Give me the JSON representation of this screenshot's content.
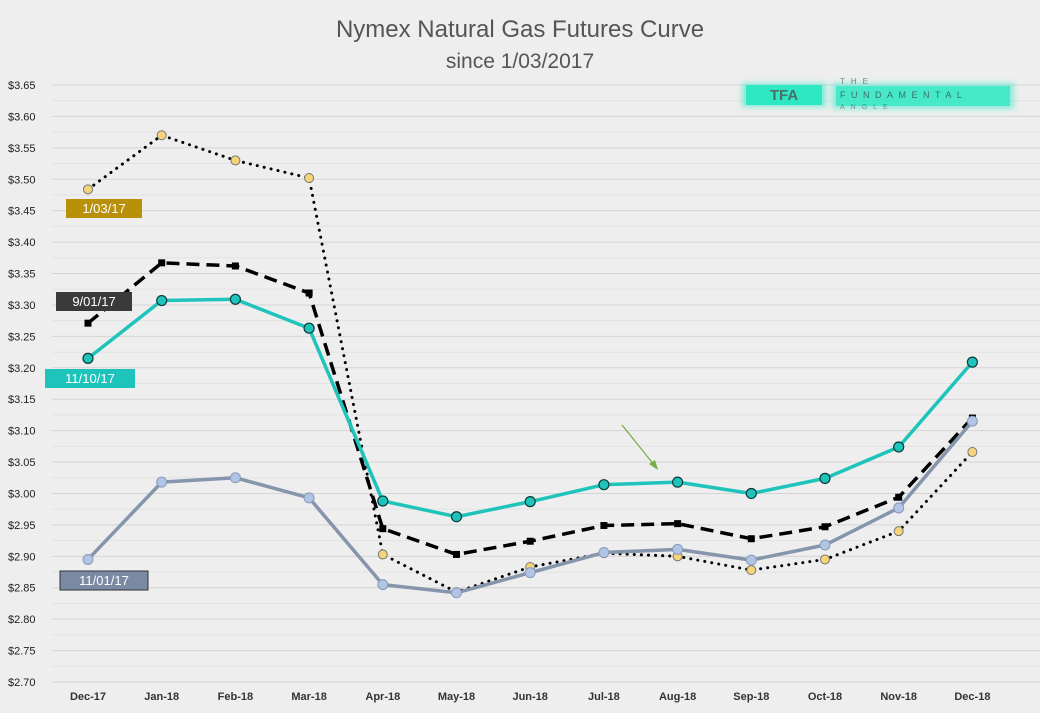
{
  "chart_data": {
    "type": "line",
    "title": "Nymex Natural Gas Futures Curve",
    "subtitle": "since 1/03/2017",
    "categories": [
      "Dec-17",
      "Jan-18",
      "Feb-18",
      "Mar-18",
      "Apr-18",
      "May-18",
      "Jun-18",
      "Jul-18",
      "Aug-18",
      "Sep-18",
      "Oct-18",
      "Nov-18",
      "Dec-18"
    ],
    "ylim": [
      2.7,
      3.65
    ],
    "ytick_step": 0.05,
    "ytick_labels": [
      "$2.70",
      "$2.75",
      "$2.80",
      "$2.85",
      "$2.90",
      "$2.95",
      "$3.00",
      "$3.05",
      "$3.10",
      "$3.15",
      "$3.20",
      "$3.25",
      "$3.30",
      "$3.35",
      "$3.40",
      "$3.45",
      "$3.50",
      "$3.55",
      "$3.60",
      "$3.65"
    ],
    "grid": true,
    "legend": "inline tags",
    "series": [
      {
        "name": "1/03/17",
        "style": "dotted",
        "color": "#000000",
        "marker_color": "#f5d47a",
        "tag_color": "#b8900a",
        "tag_text_color": "#ffffff",
        "values": [
          3.484,
          3.57,
          3.53,
          3.502,
          2.903,
          2.843,
          2.883,
          2.905,
          2.9,
          2.878,
          2.895,
          2.94,
          3.066
        ]
      },
      {
        "name": "9/01/17",
        "style": "dashed",
        "color": "#000000",
        "marker_color": "#000000",
        "tag_color": "#3a3a3a",
        "tag_text_color": "#ffffff",
        "values": [
          3.271,
          3.367,
          3.362,
          3.319,
          2.944,
          2.903,
          2.924,
          2.949,
          2.952,
          2.928,
          2.947,
          2.994,
          3.12
        ]
      },
      {
        "name": "11/10/17",
        "style": "solid",
        "color": "#1ec4bb",
        "marker_color": "#1ec4bb",
        "tag_color": "#1ec4bb",
        "tag_text_color": "#ffffff",
        "values": [
          3.215,
          3.307,
          3.309,
          3.263,
          2.988,
          2.963,
          2.987,
          3.014,
          3.018,
          3.0,
          3.024,
          3.074,
          3.209
        ]
      },
      {
        "name": "11/01/17",
        "style": "solid",
        "color": "#8595ac",
        "marker_color": "#b0c4e6",
        "tag_color": "#7a8aa3",
        "tag_text_color": "#ffffff",
        "values": [
          2.895,
          3.018,
          3.025,
          2.993,
          2.855,
          2.842,
          2.874,
          2.906,
          2.911,
          2.894,
          2.918,
          2.977,
          3.115
        ]
      }
    ]
  },
  "logo": {
    "mark": "TFA",
    "line1": "THE",
    "line2": "FUNDAMENTAL",
    "line3": "ANGLE",
    "color": "#2ee8c4"
  },
  "annotation": {
    "type": "arrow",
    "color": "#70ad47"
  }
}
